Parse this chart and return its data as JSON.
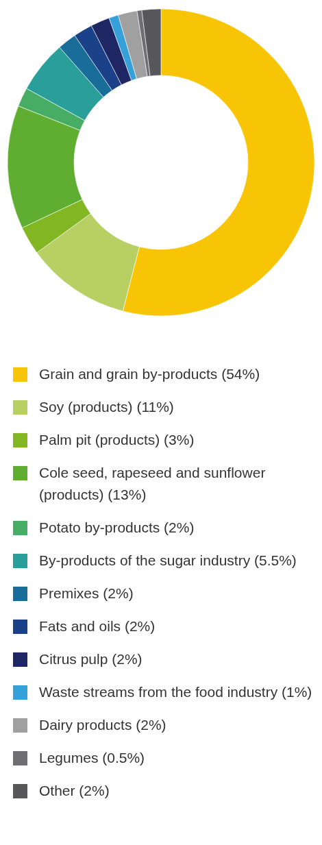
{
  "chart_data": {
    "type": "donut",
    "categories": [
      "Grain and grain by-products (54%)",
      "Soy (products) (11%)",
      "Palm pit (products) (3%)",
      "Cole seed, rapeseed and sunflower (products) (13%)",
      "Potato by-products (2%)",
      "By-products of the sugar industry (5.5%)",
      "Premixes (2%)",
      "Fats and oils (2%)",
      "Citrus pulp (2%)",
      "Waste streams from the food industry (1%)",
      "Dairy products (2%)",
      "Legumes (0.5%)",
      "Other (2%)"
    ],
    "values": [
      54,
      11,
      3,
      13,
      2,
      5.5,
      2,
      2,
      2,
      1,
      2,
      0.5,
      2
    ],
    "colors": [
      "#f7c505",
      "#b7cf63",
      "#82b723",
      "#5fae32",
      "#48ad64",
      "#2a9e99",
      "#196e99",
      "#1b4189",
      "#1f2664",
      "#36a1d9",
      "#a0a0a0",
      "#6e6e73",
      "#58585b"
    ],
    "legend": "bottom"
  }
}
